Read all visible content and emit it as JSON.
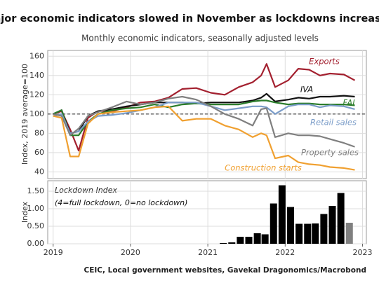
{
  "title": "Major economic indicators slowed in November as lockdowns increased",
  "subtitle": "Monthly economic indicators, seasonally adjusted levels",
  "source": "CEIC, Local government websites, Gavekal Dragonomics/Macrobond",
  "chart_data": [
    {
      "type": "line",
      "ylabel": "Index, 2019 average=100",
      "xlim": [
        2018.93,
        2023.05
      ],
      "xticks": [
        2019,
        2020,
        2021,
        2022,
        2023
      ],
      "ylim": [
        33,
        166
      ],
      "yticks": [
        40,
        60,
        80,
        100,
        120,
        140,
        160
      ],
      "hline": 100,
      "grid": true,
      "x": [
        2019.0,
        2019.11,
        2019.22,
        2019.33,
        2019.45,
        2019.58,
        2019.76,
        2019.95,
        2020.13,
        2020.31,
        2020.49,
        2020.67,
        2020.85,
        2021.04,
        2021.22,
        2021.4,
        2021.58,
        2021.69,
        2021.76,
        2021.87,
        2022.04,
        2022.17,
        2022.31,
        2022.45,
        2022.58,
        2022.76,
        2022.9
      ],
      "series": [
        {
          "name": "Exports",
          "color": "#a3202f",
          "values": [
            100,
            103,
            84,
            62,
            96,
            103,
            103,
            107,
            112,
            113,
            117,
            126,
            127,
            122,
            120,
            128,
            133,
            140,
            152,
            128,
            135,
            147,
            146,
            140,
            142,
            141,
            135
          ]
        },
        {
          "name": "IVA",
          "color": "#111111",
          "values": [
            100,
            104,
            80,
            82,
            98,
            103,
            105,
            108,
            110,
            112,
            112,
            112,
            111,
            112,
            112,
            112,
            114,
            117,
            121,
            113,
            115,
            117,
            116,
            118,
            118,
            119,
            118
          ]
        },
        {
          "name": "FAI",
          "color": "#2b7d2b",
          "values": [
            100,
            104,
            78,
            78,
            92,
            100,
            104,
            106,
            107,
            110,
            107,
            110,
            111,
            110,
            110,
            110,
            113,
            114,
            114,
            112,
            110,
            111,
            111,
            110,
            110,
            110,
            109
          ]
        },
        {
          "name": "Retail sales",
          "color": "#7a9cc8",
          "values": [
            98,
            100,
            80,
            82,
            92,
            98,
            99,
            101,
            104,
            107,
            112,
            112,
            112,
            108,
            104,
            106,
            108,
            108,
            107,
            100,
            108,
            110,
            110,
            107,
            109,
            108,
            105
          ]
        },
        {
          "name": "Property sales",
          "color": "#7f7f7f",
          "values": [
            100,
            98,
            78,
            85,
            98,
            102,
            107,
            113,
            110,
            112,
            116,
            118,
            115,
            108,
            100,
            95,
            88,
            105,
            106,
            76,
            80,
            78,
            78,
            77,
            74,
            70,
            66
          ]
        },
        {
          "name": "Construction starts",
          "color": "#f0a030",
          "values": [
            98,
            96,
            56,
            56,
            90,
            100,
            102,
            103,
            104,
            107,
            108,
            93,
            95,
            95,
            88,
            84,
            76,
            80,
            78,
            54,
            57,
            50,
            48,
            47,
            45,
            44,
            42
          ]
        }
      ]
    },
    {
      "type": "bar",
      "title": "Lockdown Index",
      "subtitle": "(4=full lockdown, 0=no lockdown)",
      "ylabel": "Index",
      "xlim": [
        2018.93,
        2023.05
      ],
      "xticks": [
        2019,
        2020,
        2021,
        2022,
        2023
      ],
      "ylim": [
        0,
        1.8
      ],
      "yticks": [
        {
          "value": 0,
          "label": "0.00"
        },
        {
          "value": 0.5,
          "label": "0.50"
        },
        {
          "value": 1,
          "label": "1.00"
        },
        {
          "value": 1.5,
          "label": "1.50"
        }
      ],
      "grid": true,
      "x": [
        2021.2,
        2021.31,
        2021.42,
        2021.53,
        2021.64,
        2021.74,
        2021.85,
        2021.96,
        2022.07,
        2022.18,
        2022.29,
        2022.39,
        2022.5,
        2022.61,
        2022.72,
        2022.83
      ],
      "values": [
        0.02,
        0.04,
        0.2,
        0.2,
        0.3,
        0.27,
        1.15,
        1.67,
        1.05,
        0.57,
        0.57,
        0.58,
        0.85,
        1.08,
        1.45,
        0.6
      ],
      "colors": [
        "#000000",
        "#000000",
        "#000000",
        "#000000",
        "#000000",
        "#000000",
        "#000000",
        "#000000",
        "#000000",
        "#000000",
        "#000000",
        "#000000",
        "#000000",
        "#000000",
        "#000000",
        "#808080"
      ]
    }
  ]
}
